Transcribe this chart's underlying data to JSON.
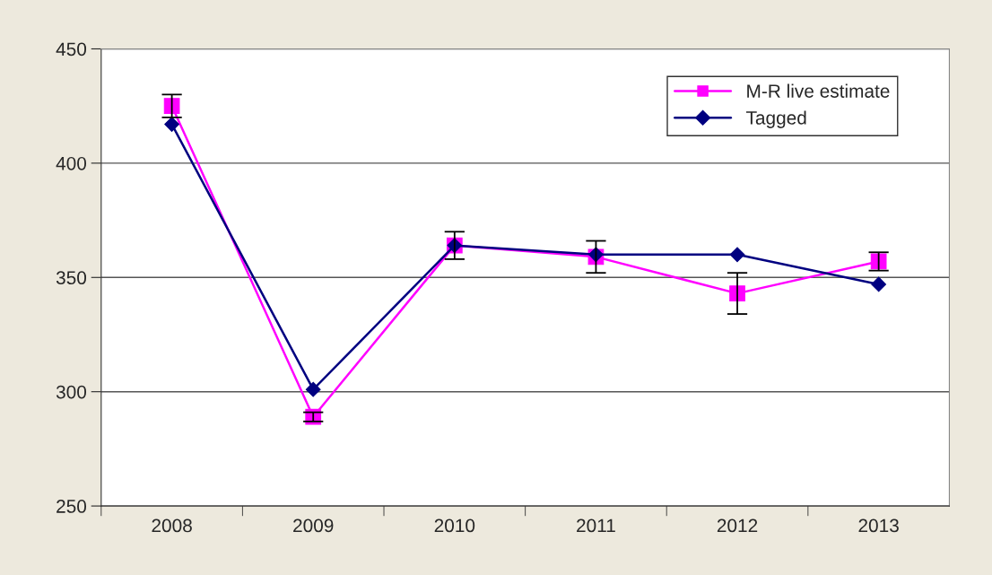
{
  "chart_data": {
    "type": "line",
    "categories": [
      "2008",
      "2009",
      "2010",
      "2011",
      "2012",
      "2013"
    ],
    "series": [
      {
        "name": "M-R live estimate",
        "color": "#ff00ff",
        "marker": "square",
        "values": [
          425,
          289,
          364,
          359,
          343,
          357
        ],
        "errors": [
          5,
          2,
          6,
          7,
          9,
          4
        ]
      },
      {
        "name": "Tagged",
        "color": "#000080",
        "marker": "diamond",
        "values": [
          417,
          301,
          364,
          360,
          360,
          347
        ]
      }
    ],
    "ylim": [
      250,
      450
    ],
    "yticks": [
      250,
      300,
      350,
      400,
      450
    ],
    "grid": "y",
    "legend": "top right",
    "line_style": "solid"
  }
}
